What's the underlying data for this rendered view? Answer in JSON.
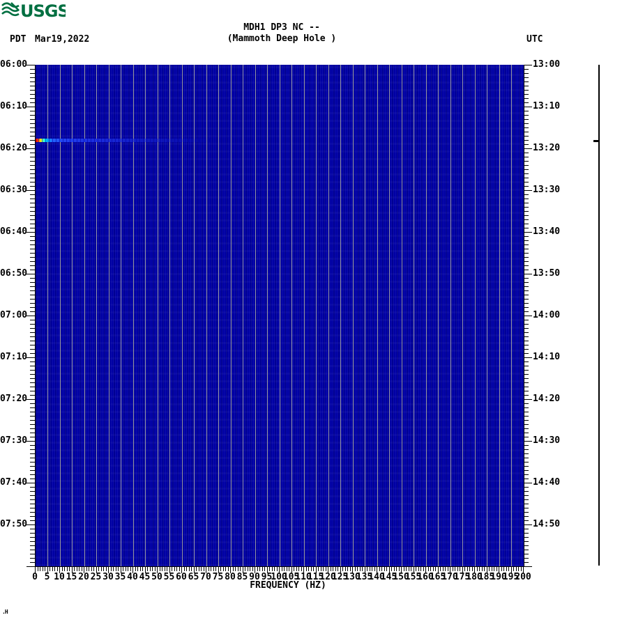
{
  "header": {
    "logo": {
      "text": "USGS",
      "color": "#006f41"
    },
    "title_line1": "MDH1 DP3 NC --",
    "title_line2": "(Mammoth Deep Hole )",
    "timezone_left": "PDT",
    "date_left": "Mar19,2022",
    "timezone_right": "UTC"
  },
  "chart_data": {
    "type": "heatmap",
    "title": "MDH1 DP3 NC -- (Mammoth Deep Hole )",
    "subtitle": "spectrogram, 06:00-08:00 PDT / 13:00-15:00 UTC, Mar19,2022",
    "xlabel": "FREQUENCY (HZ)",
    "x_min_hz": 0,
    "x_max_hz": 200,
    "x_major_step_hz": 5,
    "x_minor_step_hz": 1,
    "x_tick_labels": [
      "0",
      "5",
      "10",
      "15",
      "20",
      "25",
      "30",
      "35",
      "40",
      "45",
      "50",
      "55",
      "60",
      "65",
      "70",
      "75",
      "80",
      "85",
      "90",
      "95",
      "100",
      "105",
      "110",
      "115",
      "120",
      "125",
      "130",
      "135",
      "140",
      "145",
      "150",
      "155",
      "160",
      "165",
      "170",
      "175",
      "180",
      "185",
      "190",
      "195",
      "200"
    ],
    "y_axis_left": {
      "timezone": "PDT",
      "tick_labels": [
        "06:00",
        "06:10",
        "06:20",
        "06:30",
        "06:40",
        "06:50",
        "07:00",
        "07:10",
        "07:20",
        "07:30",
        "07:40",
        "07:50"
      ],
      "span_minutes": 120,
      "minor_step_minutes": 1,
      "major_step_minutes": 10
    },
    "y_axis_right": {
      "timezone": "UTC",
      "tick_labels": [
        "13:00",
        "13:10",
        "13:20",
        "13:30",
        "13:40",
        "13:50",
        "14:00",
        "14:10",
        "14:20",
        "14:30",
        "14:40",
        "14:50"
      ]
    },
    "grid": {
      "vertical_every_hz": 5,
      "color": "#97979f"
    },
    "background_color": "#0000a4",
    "events": [
      {
        "time_pdt": "06:18",
        "time_utc": "13:18",
        "offset_minutes_from_start": 17.7,
        "freq_start_hz": 0,
        "freq_visible_extent_hz": 74,
        "intensity_colors_high_to_low": [
          "#990000",
          "#ff1100",
          "#ff7700",
          "#ffee00",
          "#bbff66",
          "#33ffcc",
          "#00e5ff",
          "#00aaff",
          "#2266ff",
          "#2244f2",
          "#1c2fe0"
        ]
      }
    ],
    "side_trace": {
      "spike_time_pdt": "06:18"
    }
  },
  "footer": {
    "corner_mark": ".H"
  }
}
